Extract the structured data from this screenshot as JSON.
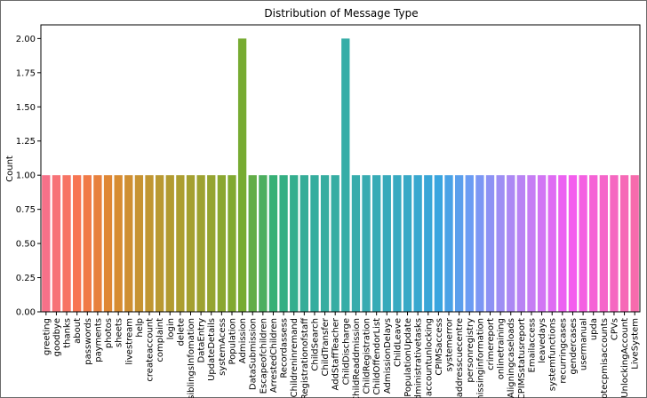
{
  "chart_data": {
    "type": "bar",
    "title": "Distribution of Message Type",
    "xlabel": "",
    "ylabel": "Count",
    "ylim": [
      0,
      2.1
    ],
    "yticks": [
      "0.00",
      "0.25",
      "0.50",
      "0.75",
      "1.00",
      "1.25",
      "1.50",
      "1.75",
      "2.00"
    ],
    "grid": false,
    "categories": [
      "greeting",
      "goodbye",
      "thanks",
      "about",
      "passwords",
      "payments",
      "photos",
      "sheets",
      "livestream",
      "help",
      "createaccount",
      "complaint",
      "login",
      "delete",
      "siblingsInfomation",
      "DataEntry",
      "UpdateDetails",
      "systemAcess",
      "Population",
      "Admission",
      "DataSubmission",
      "Escapeofchildren",
      "ArrestedChildren",
      "Recordassess",
      "Childreninremand",
      "Registrationofstaff",
      "ChildSearch",
      "ChildTransfer",
      "AddStaffTeacher",
      "ChildDischarge",
      "ChildReaddmission",
      "ChildRegistration",
      "ChildOffendorList",
      "AdmissionDelays",
      "ChildLeave",
      "PopulationUpdate",
      "Administrativetasks",
      "accountunlocking",
      "CPIMSaccess",
      "systemerror",
      "addresscuecentre",
      "personregistry",
      "missinginformation",
      "crimereport",
      "onlinetraining",
      "Aligningcaseloads",
      "CPIMSstatusreport",
      "Emailaccess",
      "leavedays",
      "systemfunctions",
      "recurringcases",
      "gendercases",
      "usermanual",
      "upda",
      "Protecpmisaccounts",
      "CPVs",
      "UnlockingAccount",
      "LiveSystem"
    ],
    "values": [
      1,
      1,
      1,
      1,
      1,
      1,
      1,
      1,
      1,
      1,
      1,
      1,
      1,
      1,
      1,
      1,
      1,
      1,
      1,
      2,
      1,
      1,
      1,
      1,
      1,
      1,
      1,
      1,
      1,
      2,
      1,
      1,
      1,
      1,
      1,
      1,
      1,
      1,
      1,
      1,
      1,
      1,
      1,
      1,
      1,
      1,
      1,
      1,
      1,
      1,
      1,
      1,
      1,
      1,
      1,
      1,
      1,
      1
    ],
    "colors": [
      "#f77189",
      "#f7754f",
      "#dc8932",
      "#c39532",
      "#ae9d31",
      "#97a431",
      "#77ab31",
      "#33b07a",
      "#35ad9c",
      "#36ada4",
      "#37abb4",
      "#38a9c5",
      "#3aa5df",
      "#6e9bf4",
      "#a48cf4",
      "#cc7af4",
      "#f45cf2",
      "#f565cc",
      "#f66bad"
    ]
  }
}
